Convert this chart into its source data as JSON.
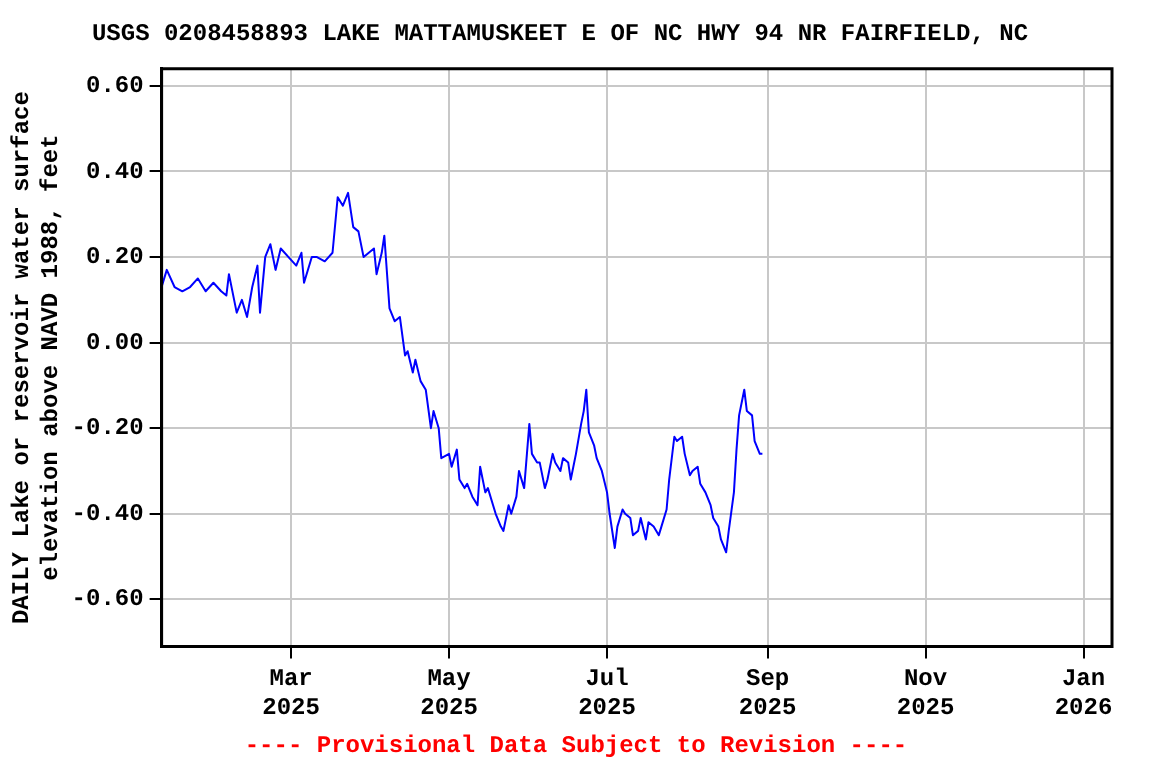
{
  "chart_data": {
    "type": "line",
    "title": "USGS 0208458893 LAKE MATTAMUSKEET E OF NC HWY 94 NR FAIRFIELD, NC",
    "ylabel": "DAILY Lake or reservoir water surface elevation above NAVD 1988, feet",
    "annotations": [
      "---- Provisional Data Subject to Revision ----"
    ],
    "xlim": [
      "2025-01-10",
      "2026-01-12"
    ],
    "xticks": [
      {
        "value": "2025-03-01",
        "label": "Mar 2025"
      },
      {
        "value": "2025-05-01",
        "label": "May 2025"
      },
      {
        "value": "2025-07-01",
        "label": "Jul 2025"
      },
      {
        "value": "2025-09-01",
        "label": "Sep 2025"
      },
      {
        "value": "2025-11-01",
        "label": "Nov 2025"
      },
      {
        "value": "2026-01-01",
        "label": "Jan 2026"
      }
    ],
    "ylim": [
      -0.71,
      0.64
    ],
    "yticks": [
      {
        "value": 0.6,
        "label": "0.60"
      },
      {
        "value": 0.4,
        "label": "0.40"
      },
      {
        "value": 0.2,
        "label": "0.20"
      },
      {
        "value": 0,
        "label": "0.00"
      },
      {
        "value": -0.2,
        "label": "-0.20"
      },
      {
        "value": -0.4,
        "label": "-0.40"
      },
      {
        "value": -0.6,
        "label": "-0.60"
      }
    ],
    "grid": true,
    "legend": false,
    "marker": "none",
    "line_style": "solid",
    "x": [
      "2025-01-10",
      "2025-01-12",
      "2025-01-15",
      "2025-01-18",
      "2025-01-21",
      "2025-01-24",
      "2025-01-27",
      "2025-01-30",
      "2025-02-02",
      "2025-02-04",
      "2025-02-05",
      "2025-02-07",
      "2025-02-08",
      "2025-02-10",
      "2025-02-12",
      "2025-02-14",
      "2025-02-16",
      "2025-02-17",
      "2025-02-19",
      "2025-02-21",
      "2025-02-23",
      "2025-02-25",
      "2025-02-28",
      "2025-03-03",
      "2025-03-05",
      "2025-03-06",
      "2025-03-09",
      "2025-03-11",
      "2025-03-14",
      "2025-03-17",
      "2025-03-19",
      "2025-03-21",
      "2025-03-23",
      "2025-03-25",
      "2025-03-27",
      "2025-03-29",
      "2025-03-31",
      "2025-04-02",
      "2025-04-03",
      "2025-04-05",
      "2025-04-06",
      "2025-04-08",
      "2025-04-10",
      "2025-04-12",
      "2025-04-14",
      "2025-04-15",
      "2025-04-17",
      "2025-04-18",
      "2025-04-20",
      "2025-04-22",
      "2025-04-24",
      "2025-04-25",
      "2025-04-27",
      "2025-04-28",
      "2025-05-01",
      "2025-05-02",
      "2025-05-04",
      "2025-05-05",
      "2025-05-07",
      "2025-05-08",
      "2025-05-10",
      "2025-05-12",
      "2025-05-13",
      "2025-05-15",
      "2025-05-16",
      "2025-05-18",
      "2025-05-19",
      "2025-05-21",
      "2025-05-22",
      "2025-05-24",
      "2025-05-25",
      "2025-05-27",
      "2025-05-28",
      "2025-05-30",
      "2025-06-01",
      "2025-06-02",
      "2025-06-04",
      "2025-06-05",
      "2025-06-07",
      "2025-06-08",
      "2025-06-10",
      "2025-06-11",
      "2025-06-13",
      "2025-06-14",
      "2025-06-16",
      "2025-06-17",
      "2025-06-19",
      "2025-06-21",
      "2025-06-22",
      "2025-06-23",
      "2025-06-24",
      "2025-06-26",
      "2025-06-27",
      "2025-06-29",
      "2025-07-01",
      "2025-07-02",
      "2025-07-04",
      "2025-07-05",
      "2025-07-07",
      "2025-07-08",
      "2025-07-10",
      "2025-07-11",
      "2025-07-13",
      "2025-07-14",
      "2025-07-16",
      "2025-07-17",
      "2025-07-19",
      "2025-07-21",
      "2025-07-22",
      "2025-07-24",
      "2025-07-25",
      "2025-07-27",
      "2025-07-28",
      "2025-07-30",
      "2025-07-31",
      "2025-08-02",
      "2025-08-03",
      "2025-08-05",
      "2025-08-06",
      "2025-08-08",
      "2025-08-10",
      "2025-08-11",
      "2025-08-13",
      "2025-08-14",
      "2025-08-16",
      "2025-08-17",
      "2025-08-19",
      "2025-08-20",
      "2025-08-21",
      "2025-08-23",
      "2025-08-24",
      "2025-08-26",
      "2025-08-27",
      "2025-08-29",
      "2025-08-30"
    ],
    "series": [
      {
        "color": "#0000ff",
        "values": [
          0.13,
          0.17,
          0.13,
          0.12,
          0.13,
          0.15,
          0.12,
          0.14,
          0.12,
          0.11,
          0.16,
          0.1,
          0.07,
          0.1,
          0.06,
          0.13,
          0.18,
          0.07,
          0.2,
          0.23,
          0.17,
          0.22,
          0.2,
          0.18,
          0.21,
          0.14,
          0.2,
          0.2,
          0.19,
          0.21,
          0.34,
          0.32,
          0.35,
          0.27,
          0.26,
          0.2,
          0.21,
          0.22,
          0.16,
          0.21,
          0.25,
          0.08,
          0.05,
          0.06,
          -0.03,
          -0.02,
          -0.07,
          -0.04,
          -0.09,
          -0.11,
          -0.2,
          -0.16,
          -0.2,
          -0.27,
          -0.26,
          -0.29,
          -0.25,
          -0.32,
          -0.34,
          -0.33,
          -0.36,
          -0.38,
          -0.29,
          -0.35,
          -0.34,
          -0.38,
          -0.4,
          -0.43,
          -0.44,
          -0.38,
          -0.4,
          -0.36,
          -0.3,
          -0.34,
          -0.19,
          -0.26,
          -0.28,
          -0.28,
          -0.34,
          -0.32,
          -0.26,
          -0.28,
          -0.3,
          -0.27,
          -0.28,
          -0.32,
          -0.26,
          -0.19,
          -0.16,
          -0.11,
          -0.21,
          -0.24,
          -0.27,
          -0.3,
          -0.35,
          -0.4,
          -0.48,
          -0.43,
          -0.39,
          -0.4,
          -0.41,
          -0.45,
          -0.44,
          -0.41,
          -0.46,
          -0.42,
          -0.43,
          -0.45,
          -0.43,
          -0.39,
          -0.32,
          -0.22,
          -0.23,
          -0.22,
          -0.26,
          -0.31,
          -0.3,
          -0.29,
          -0.33,
          -0.35,
          -0.38,
          -0.41,
          -0.43,
          -0.46,
          -0.49,
          -0.44,
          -0.35,
          -0.25,
          -0.17,
          -0.11,
          -0.16,
          -0.17,
          -0.23,
          -0.26,
          -0.26
        ]
      }
    ]
  }
}
